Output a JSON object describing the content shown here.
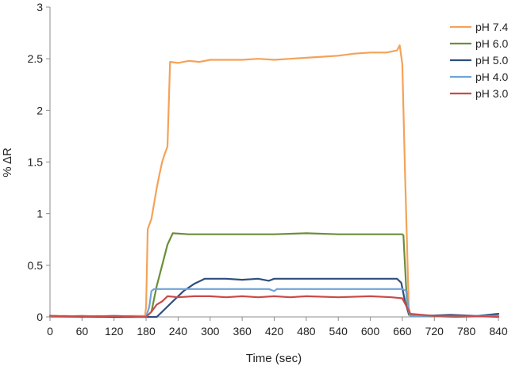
{
  "chart_data": {
    "type": "line",
    "title": "",
    "xlabel": "Time (sec)",
    "ylabel": "% ΔR",
    "xlim": [
      0,
      840
    ],
    "ylim": [
      0,
      3
    ],
    "xticks": [
      0,
      60,
      120,
      180,
      240,
      300,
      360,
      420,
      480,
      540,
      600,
      660,
      720,
      780,
      840
    ],
    "xtick_labels": [
      "0",
      "60",
      "120",
      "180",
      "240",
      "300",
      "360",
      "420",
      "480",
      "540",
      "600",
      "660",
      "720",
      "780",
      "840"
    ],
    "yticks": [
      0,
      0.5,
      1,
      1.5,
      2,
      2.5,
      3
    ],
    "ytick_labels": [
      "0",
      "0.5",
      "1",
      "1.5",
      "2",
      "2.5",
      "3"
    ],
    "grid": false,
    "legend_position": "top-right",
    "series": [
      {
        "name": "pH 7.4",
        "color": "#F4A259",
        "points": [
          [
            0,
            0.01
          ],
          [
            30,
            0.01
          ],
          [
            60,
            0.0
          ],
          [
            90,
            0.01
          ],
          [
            120,
            0.0
          ],
          [
            150,
            0.01
          ],
          [
            178,
            0.01
          ],
          [
            180,
            0.1
          ],
          [
            183,
            0.85
          ],
          [
            190,
            0.95
          ],
          [
            195,
            1.1
          ],
          [
            200,
            1.25
          ],
          [
            205,
            1.38
          ],
          [
            210,
            1.5
          ],
          [
            215,
            1.58
          ],
          [
            220,
            1.65
          ],
          [
            225,
            2.47
          ],
          [
            240,
            2.46
          ],
          [
            260,
            2.48
          ],
          [
            280,
            2.47
          ],
          [
            300,
            2.49
          ],
          [
            330,
            2.49
          ],
          [
            360,
            2.49
          ],
          [
            390,
            2.5
          ],
          [
            420,
            2.49
          ],
          [
            450,
            2.5
          ],
          [
            480,
            2.51
          ],
          [
            510,
            2.52
          ],
          [
            540,
            2.53
          ],
          [
            570,
            2.55
          ],
          [
            600,
            2.56
          ],
          [
            630,
            2.56
          ],
          [
            650,
            2.58
          ],
          [
            655,
            2.63
          ],
          [
            660,
            2.45
          ],
          [
            665,
            1.4
          ],
          [
            672,
            0.1
          ],
          [
            675,
            0.02
          ],
          [
            720,
            0.01
          ],
          [
            780,
            0.01
          ],
          [
            840,
            0.01
          ]
        ]
      },
      {
        "name": "pH 6.0",
        "color": "#6B8E3A",
        "points": [
          [
            0,
            0.0
          ],
          [
            60,
            0.01
          ],
          [
            120,
            0.0
          ],
          [
            180,
            0.0
          ],
          [
            190,
            0.05
          ],
          [
            200,
            0.3
          ],
          [
            210,
            0.5
          ],
          [
            220,
            0.7
          ],
          [
            230,
            0.81
          ],
          [
            260,
            0.8
          ],
          [
            300,
            0.8
          ],
          [
            360,
            0.8
          ],
          [
            420,
            0.8
          ],
          [
            480,
            0.81
          ],
          [
            540,
            0.8
          ],
          [
            600,
            0.8
          ],
          [
            640,
            0.8
          ],
          [
            660,
            0.8
          ],
          [
            662,
            0.79
          ],
          [
            668,
            0.2
          ],
          [
            672,
            0.02
          ],
          [
            700,
            0.01
          ],
          [
            760,
            0.0
          ],
          [
            840,
            0.01
          ]
        ]
      },
      {
        "name": "pH 5.0",
        "color": "#2E4E7E",
        "points": [
          [
            0,
            0.01
          ],
          [
            60,
            0.0
          ],
          [
            120,
            0.0
          ],
          [
            180,
            0.0
          ],
          [
            200,
            0.0
          ],
          [
            210,
            0.05
          ],
          [
            230,
            0.15
          ],
          [
            250,
            0.25
          ],
          [
            270,
            0.32
          ],
          [
            290,
            0.37
          ],
          [
            330,
            0.37
          ],
          [
            360,
            0.36
          ],
          [
            390,
            0.37
          ],
          [
            410,
            0.35
          ],
          [
            420,
            0.37
          ],
          [
            480,
            0.37
          ],
          [
            540,
            0.37
          ],
          [
            600,
            0.37
          ],
          [
            650,
            0.37
          ],
          [
            658,
            0.33
          ],
          [
            665,
            0.15
          ],
          [
            672,
            0.03
          ],
          [
            700,
            0.01
          ],
          [
            750,
            0.02
          ],
          [
            800,
            0.01
          ],
          [
            840,
            0.03
          ]
        ]
      },
      {
        "name": "pH 4.0",
        "color": "#6FA3D8",
        "points": [
          [
            0,
            0.0
          ],
          [
            60,
            0.0
          ],
          [
            120,
            0.01
          ],
          [
            180,
            0.0
          ],
          [
            186,
            0.1
          ],
          [
            190,
            0.25
          ],
          [
            195,
            0.27
          ],
          [
            240,
            0.27
          ],
          [
            300,
            0.27
          ],
          [
            360,
            0.27
          ],
          [
            410,
            0.27
          ],
          [
            420,
            0.25
          ],
          [
            425,
            0.27
          ],
          [
            480,
            0.27
          ],
          [
            540,
            0.27
          ],
          [
            600,
            0.27
          ],
          [
            660,
            0.27
          ],
          [
            668,
            0.25
          ],
          [
            672,
            0.05
          ],
          [
            675,
            0.01
          ],
          [
            720,
            0.01
          ],
          [
            840,
            0.01
          ]
        ]
      },
      {
        "name": "pH 3.0",
        "color": "#C94A4A",
        "points": [
          [
            0,
            0.01
          ],
          [
            60,
            0.0
          ],
          [
            120,
            0.01
          ],
          [
            180,
            0.0
          ],
          [
            190,
            0.05
          ],
          [
            200,
            0.12
          ],
          [
            210,
            0.15
          ],
          [
            220,
            0.2
          ],
          [
            240,
            0.19
          ],
          [
            270,
            0.2
          ],
          [
            300,
            0.2
          ],
          [
            330,
            0.19
          ],
          [
            360,
            0.2
          ],
          [
            390,
            0.19
          ],
          [
            420,
            0.2
          ],
          [
            450,
            0.19
          ],
          [
            480,
            0.2
          ],
          [
            540,
            0.19
          ],
          [
            600,
            0.2
          ],
          [
            640,
            0.19
          ],
          [
            660,
            0.18
          ],
          [
            668,
            0.1
          ],
          [
            675,
            0.03
          ],
          [
            720,
            0.01
          ],
          [
            780,
            0.01
          ],
          [
            840,
            0.0
          ]
        ]
      }
    ]
  }
}
